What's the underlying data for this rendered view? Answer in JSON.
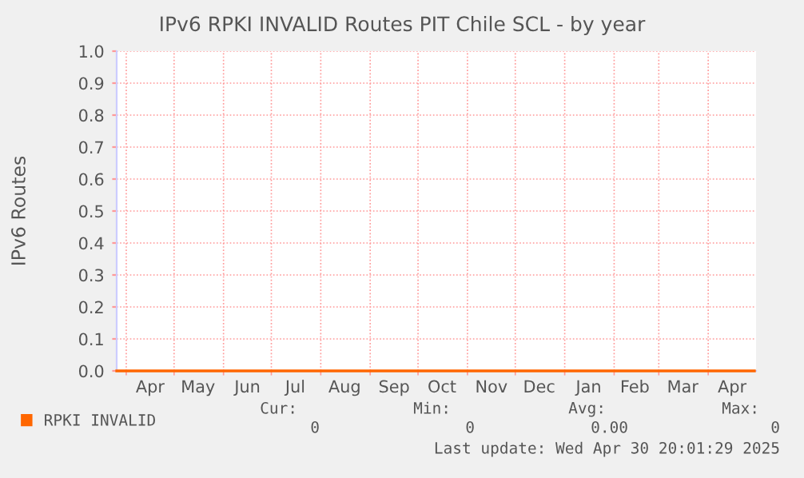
{
  "chart_data": {
    "type": "line",
    "title": "IPv6 RPKI INVALID Routes PIT Chile SCL - by year",
    "ylabel": "IPv6 Routes",
    "x": [
      "2024-03-26",
      "2024-06-01",
      "2024-09-01",
      "2024-12-01",
      "2025-03-01",
      "2025-04-30"
    ],
    "series": [
      {
        "name": "RPKI INVALID",
        "color": "#ff6600",
        "values": [
          0,
          0,
          0,
          0,
          0,
          0
        ]
      }
    ],
    "xlim": [
      "2024-03-26",
      "2025-05-01"
    ],
    "xticks": [
      {
        "value": "2024-04-01",
        "label": null
      },
      {
        "value": "2024-05-01",
        "label": null
      },
      {
        "value": "2024-06-01",
        "label": null
      },
      {
        "value": "2024-07-01",
        "label": null
      },
      {
        "value": "2024-08-01",
        "label": null
      },
      {
        "value": "2024-09-01",
        "label": null
      },
      {
        "value": "2024-10-01",
        "label": null
      },
      {
        "value": "2024-11-01",
        "label": null
      },
      {
        "value": "2024-12-01",
        "label": null
      },
      {
        "value": "2025-01-01",
        "label": null
      },
      {
        "value": "2025-02-01",
        "label": null
      },
      {
        "value": "2025-03-01",
        "label": null
      },
      {
        "value": "2025-04-01",
        "label": null
      },
      {
        "value": "2024-04-16",
        "label": "Apr"
      },
      {
        "value": "2024-05-16",
        "label": "May"
      },
      {
        "value": "2024-06-16",
        "label": "Jun"
      },
      {
        "value": "2024-07-16",
        "label": "Jul"
      },
      {
        "value": "2024-08-16",
        "label": "Aug"
      },
      {
        "value": "2024-09-16",
        "label": "Sep"
      },
      {
        "value": "2024-10-16",
        "label": "Oct"
      },
      {
        "value": "2024-11-16",
        "label": "Nov"
      },
      {
        "value": "2024-12-16",
        "label": "Dec"
      },
      {
        "value": "2025-01-16",
        "label": "Jan"
      },
      {
        "value": "2025-02-14",
        "label": "Feb"
      },
      {
        "value": "2025-03-16",
        "label": "Mar"
      },
      {
        "value": "2025-04-16",
        "label": "Apr"
      }
    ],
    "ylim": [
      0,
      1
    ],
    "yticks": [
      {
        "value": 0,
        "label": "0.0"
      },
      {
        "value": 0.1,
        "label": "0.1"
      },
      {
        "value": 0.2,
        "label": "0.2"
      },
      {
        "value": 0.3,
        "label": "0.3"
      },
      {
        "value": 0.4,
        "label": "0.4"
      },
      {
        "value": 0.5,
        "label": "0.5"
      },
      {
        "value": 0.6,
        "label": "0.6"
      },
      {
        "value": 0.7,
        "label": "0.7"
      },
      {
        "value": 0.8,
        "label": "0.8"
      },
      {
        "value": 0.9,
        "label": "0.9"
      },
      {
        "value": 1,
        "label": "1.0"
      }
    ],
    "grid": true,
    "legend": "bottom left",
    "marker": "none",
    "line_style": "solid",
    "annotations": [
      "Cur:",
      "Min:",
      "Avg:",
      "Max:",
      "0",
      "0",
      "0.00",
      "0",
      "Last update: Wed Apr 30 20:01:29 2025"
    ]
  }
}
